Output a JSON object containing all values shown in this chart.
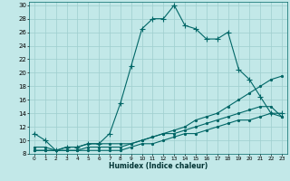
{
  "xlabel": "Humidex (Indice chaleur)",
  "bg_color": "#c2e8e8",
  "line_color": "#006666",
  "grid_color": "#9ecece",
  "xlim": [
    -0.5,
    23.5
  ],
  "ylim": [
    8,
    30.5
  ],
  "xticks": [
    0,
    1,
    2,
    3,
    4,
    5,
    6,
    7,
    8,
    9,
    10,
    11,
    12,
    13,
    14,
    15,
    16,
    17,
    18,
    19,
    20,
    21,
    22,
    23
  ],
  "yticks": [
    8,
    10,
    12,
    14,
    16,
    18,
    20,
    22,
    24,
    26,
    28,
    30
  ],
  "series": [
    {
      "x": [
        0,
        1,
        2,
        3,
        4,
        5,
        6,
        7,
        8,
        9,
        10,
        11,
        12,
        13,
        14,
        15,
        16,
        17,
        18,
        19,
        20,
        21,
        22,
        23
      ],
      "y": [
        11,
        10,
        8.5,
        9,
        9,
        9.5,
        9.5,
        11,
        15.5,
        21,
        26.5,
        28,
        28,
        30,
        27,
        26.5,
        25,
        25,
        26,
        20.5,
        19,
        16.5,
        14,
        14
      ],
      "marker": "+"
    },
    {
      "x": [
        0,
        1,
        2,
        3,
        4,
        5,
        6,
        7,
        8,
        9,
        10,
        11,
        12,
        13,
        14,
        15,
        16,
        17,
        18,
        19,
        20,
        21,
        22,
        23
      ],
      "y": [
        9,
        9,
        8.5,
        8.5,
        8.5,
        8.5,
        8.5,
        8.5,
        8.5,
        9,
        9.5,
        9.5,
        10,
        10.5,
        11,
        11,
        11.5,
        12,
        12.5,
        13,
        13,
        13.5,
        14,
        13.5
      ],
      "marker": "."
    },
    {
      "x": [
        0,
        1,
        2,
        3,
        4,
        5,
        6,
        7,
        8,
        9,
        10,
        11,
        12,
        13,
        14,
        15,
        16,
        17,
        18,
        19,
        20,
        21,
        22,
        23
      ],
      "y": [
        8.5,
        8.5,
        8.5,
        8.5,
        8.5,
        9,
        9,
        9,
        9,
        9.5,
        10,
        10.5,
        11,
        11,
        11.5,
        12,
        12.5,
        13,
        13.5,
        14,
        14.5,
        15,
        15,
        13.5
      ],
      "marker": "."
    },
    {
      "x": [
        0,
        1,
        2,
        3,
        4,
        5,
        6,
        7,
        8,
        9,
        10,
        11,
        12,
        13,
        14,
        15,
        16,
        17,
        18,
        19,
        20,
        21,
        22,
        23
      ],
      "y": [
        8.5,
        8.5,
        8.5,
        9,
        9,
        9.5,
        9.5,
        9.5,
        9.5,
        9.5,
        10,
        10.5,
        11,
        11.5,
        12,
        13,
        13.5,
        14,
        15,
        16,
        17,
        18,
        19,
        19.5
      ],
      "marker": "."
    }
  ]
}
